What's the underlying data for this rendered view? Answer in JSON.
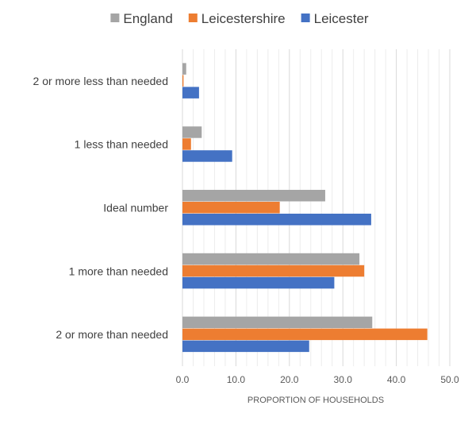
{
  "chart_data": {
    "type": "bar",
    "orientation": "horizontal",
    "categories": [
      "2 or more less than needed",
      "1 less than needed",
      "Ideal number",
      "1 more than needed",
      "2 or more than needed"
    ],
    "series": [
      {
        "name": "England",
        "color": "#a5a5a5",
        "values": [
          0.7,
          3.6,
          26.7,
          33.1,
          35.5
        ]
      },
      {
        "name": "Leicestershire",
        "color": "#ed7d31",
        "values": [
          0.2,
          1.6,
          18.2,
          34.0,
          45.8
        ]
      },
      {
        "name": "Leicester",
        "color": "#4472c4",
        "values": [
          3.1,
          9.3,
          35.3,
          28.4,
          23.7
        ]
      }
    ],
    "xlabel": "PROPORTION OF HOUSEHOLDS",
    "ylabel": "",
    "xlim": [
      0,
      50
    ],
    "x_ticks": [
      0,
      10,
      20,
      30,
      40,
      50
    ],
    "x_tick_labels": [
      "0.0",
      "10.0",
      "20.0",
      "30.0",
      "40.0",
      "50.0"
    ],
    "minor_gridlines": true,
    "legend_position": "top"
  }
}
